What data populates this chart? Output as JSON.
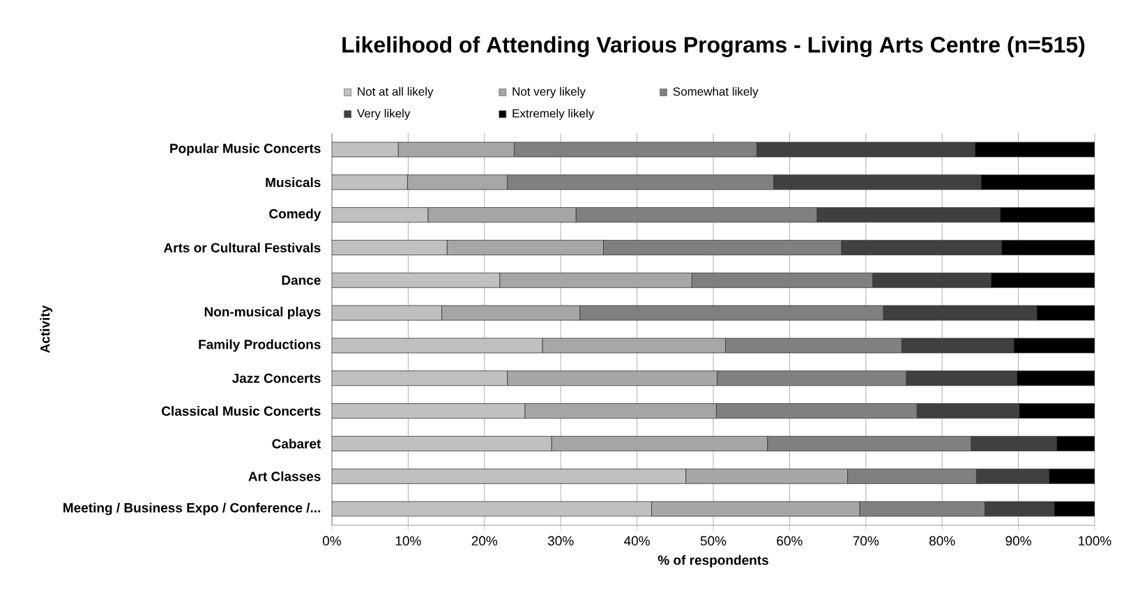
{
  "chart_data": {
    "type": "bar",
    "orientation": "horizontal",
    "stacked": true,
    "title": "Likelihood of Attending Various Programs - Living Arts Centre (n=515)",
    "xlabel": "% of respondents",
    "ylabel": "Activity",
    "categories": [
      "Popular Music Concerts",
      "Musicals",
      "Comedy",
      "Arts or Cultural Festivals",
      "Dance",
      "Non-musical plays",
      "Family Productions",
      "Jazz Concerts",
      "Classical Music Concerts",
      "Cabaret",
      "Art Classes",
      "Meeting / Business Expo / Conference /..."
    ],
    "series": [
      {
        "name": "Not at all likely",
        "color": "#c0c0c0",
        "values": [
          8.7,
          9.9,
          12.6,
          15.1,
          22.0,
          14.4,
          27.6,
          23.0,
          25.3,
          28.8,
          46.4,
          41.9
        ]
      },
      {
        "name": "Not very likely",
        "color": "#a6a6a6",
        "values": [
          15.2,
          13.1,
          19.4,
          20.5,
          25.2,
          18.1,
          24.0,
          27.5,
          25.1,
          28.3,
          21.2,
          27.3
        ]
      },
      {
        "name": "Somewhat likely",
        "color": "#808080",
        "values": [
          31.8,
          34.9,
          31.6,
          31.2,
          23.7,
          39.8,
          23.1,
          24.8,
          26.3,
          26.7,
          16.9,
          16.4
        ]
      },
      {
        "name": "Very likely",
        "color": "#404040",
        "values": [
          28.6,
          27.2,
          24.0,
          21.0,
          15.5,
          20.1,
          14.7,
          14.5,
          13.4,
          11.2,
          9.5,
          9.1
        ]
      },
      {
        "name": "Extremely likely",
        "color": "#000000",
        "values": [
          15.7,
          14.9,
          12.4,
          12.2,
          13.6,
          7.6,
          10.6,
          10.2,
          9.9,
          5.0,
          6.0,
          5.3
        ]
      }
    ],
    "xlim": [
      0,
      100
    ],
    "xticks": [
      {
        "value": 0,
        "label": "0%"
      },
      {
        "value": 10,
        "label": "10%"
      },
      {
        "value": 20,
        "label": "20%"
      },
      {
        "value": 30,
        "label": "30%"
      },
      {
        "value": 40,
        "label": "40%"
      },
      {
        "value": 50,
        "label": "50%"
      },
      {
        "value": 60,
        "label": "60%"
      },
      {
        "value": 70,
        "label": "70%"
      },
      {
        "value": 80,
        "label": "80%"
      },
      {
        "value": 90,
        "label": "90%"
      },
      {
        "value": 100,
        "label": "100%"
      }
    ],
    "grid": "x",
    "legend": "top"
  }
}
